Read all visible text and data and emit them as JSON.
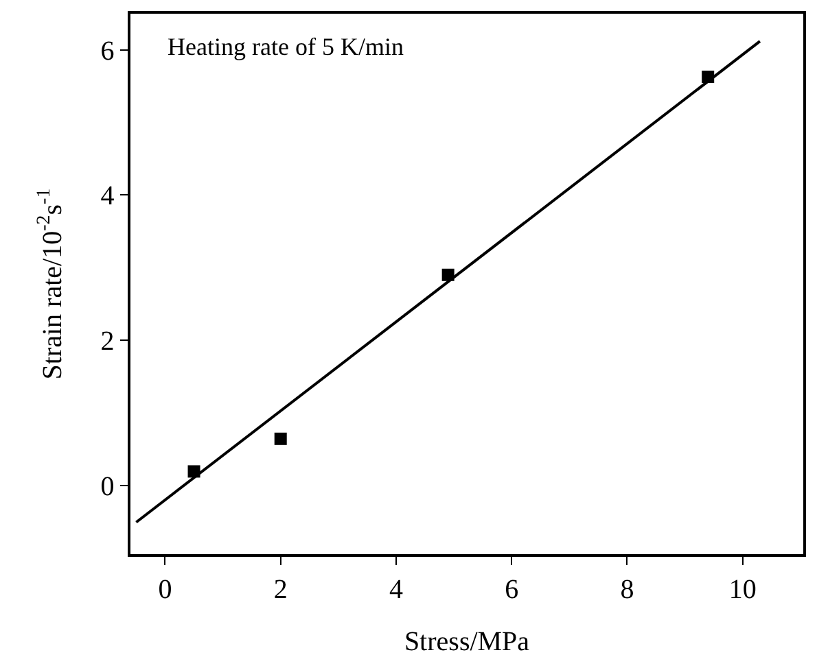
{
  "chart_data": {
    "type": "scatter",
    "xlabel": "Stress/MPa",
    "ylabel": "Strain rate/10$^{-2}$s$^{-1}$",
    "annotations": [
      "Heating rate of 5 K/min"
    ],
    "x": [
      0.5,
      2,
      4.9,
      9.4
    ],
    "series": [
      {
        "type": "scatter",
        "color": "#000000",
        "marker": "square",
        "values": [
          0.19,
          0.64,
          2.9,
          5.63
        ]
      },
      {
        "type": "line",
        "color": "#000000",
        "marker": "none",
        "line_style": "solid",
        "x": [
          -0.5,
          10.3
        ],
        "values": [
          -0.51,
          6.12
        ]
      }
    ],
    "xlim": [
      -0.6,
      11.05
    ],
    "xticks": [
      0,
      2,
      4,
      6,
      8,
      10
    ],
    "ylim": [
      -0.95,
      6.5
    ],
    "yticks": [
      0,
      2,
      4,
      6
    ],
    "grid": false
  }
}
